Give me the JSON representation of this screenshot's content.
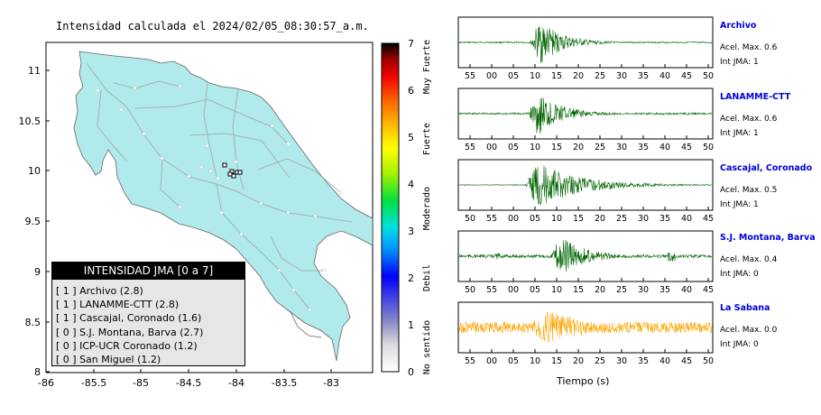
{
  "title": "Intensidad calculada el 2024/02/05_08:30:57_a.m.",
  "map": {
    "x_ticks": [
      "-86",
      "-85.5",
      "-85",
      "-84.5",
      "-84",
      "-83.5",
      "-83"
    ],
    "y_ticks": [
      "11",
      "10.5",
      "10",
      "9.5",
      "9",
      "8.5",
      "8"
    ],
    "land_color": "#b1eaea"
  },
  "colorbar": {
    "ticks": [
      "0",
      "1",
      "2",
      "3",
      "4",
      "5",
      "6",
      "7"
    ],
    "categories": [
      "No sentido",
      "Debil",
      "Moderado",
      "Fuerte",
      "Muy Fuerte"
    ]
  },
  "legend": {
    "title": "INTENSIDAD JMA [0 a 7]",
    "items": [
      "[ 1 ]  Archivo (2.8)",
      "[ 1 ]  LANAMME-CTT (2.8)",
      "[ 1 ]  Cascajal, Coronado (1.6)",
      "[ 0 ]  S.J. Montana, Barva (2.7)",
      "[ 0 ]  ICP-UCR Coronado (1.2)",
      "[ 0 ]  San Miguel (1.2)"
    ]
  },
  "traces": [
    {
      "name": "Archivo",
      "accel": "Acel. Max. 0.6",
      "jma": "Int JMA: 1",
      "color": "#006400",
      "ticks": [
        "55",
        "00",
        "05",
        "10",
        "15",
        "20",
        "25",
        "30",
        "35",
        "40",
        "45",
        "50"
      ]
    },
    {
      "name": "LANAMME-CTT",
      "accel": "Acel. Max. 0.6",
      "jma": "Int JMA: 1",
      "color": "#006400",
      "ticks": [
        "55",
        "00",
        "05",
        "10",
        "15",
        "20",
        "25",
        "30",
        "35",
        "40",
        "45",
        "50"
      ]
    },
    {
      "name": "Cascajal, Coronado",
      "accel": "Acel. Max. 0.5",
      "jma": "Int JMA: 1",
      "color": "#006400",
      "ticks": [
        "50",
        "55",
        "00",
        "05",
        "10",
        "15",
        "20",
        "25",
        "30",
        "35",
        "40",
        "45"
      ]
    },
    {
      "name": "S.J. Montana, Barva",
      "accel": "Acel. Max. 0.4",
      "jma": "Int JMA: 0",
      "color": "#006400",
      "ticks": [
        "50",
        "55",
        "00",
        "05",
        "10",
        "15",
        "20",
        "25",
        "30",
        "35",
        "40",
        "45"
      ]
    },
    {
      "name": "La Sabana",
      "accel": "Acel. Max. 0.0",
      "jma": "Int JMA: 0",
      "color": "#ffa500",
      "ticks": [
        "55",
        "00",
        "05",
        "10",
        "15",
        "20",
        "25",
        "30",
        "35",
        "40",
        "45",
        "50"
      ]
    }
  ],
  "x_axis_label": "Tiempo (s)"
}
